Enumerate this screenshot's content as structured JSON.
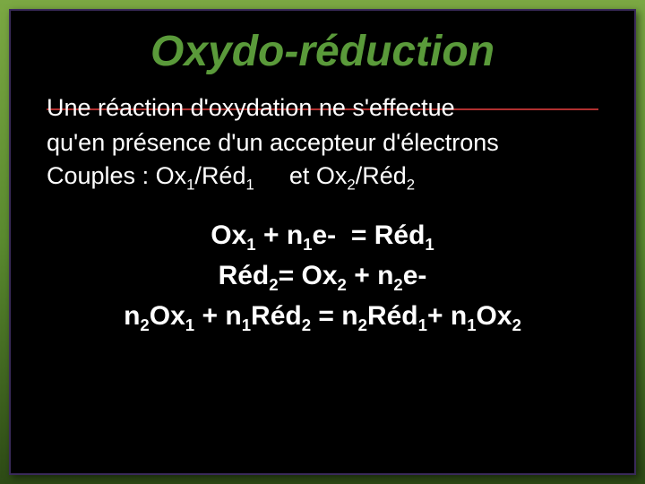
{
  "background": {
    "gradient_top": "#7ba843",
    "gradient_mid": "#5a8a2f",
    "gradient_bottom": "#2d4a15"
  },
  "frame": {
    "background_color": "#000000",
    "border_color": "#3a2a5a",
    "rule_color": "#b03030"
  },
  "typography": {
    "font_family": "Comic Sans MS",
    "title_fontsize": 48,
    "body_fontsize": 27,
    "equation_fontsize": 30,
    "title_color": "#5a9a3a",
    "text_color": "#ffffff"
  },
  "title": "Oxydo-réduction",
  "paragraph_line1": "Une réaction d'oxydation ne s'effectue",
  "paragraph_line2": "qu'en présence d'un accepteur d'électrons",
  "couples_label": "Couples :",
  "couples_pair1_ox": "Ox",
  "couples_pair1_red": "Réd",
  "couples_and": "et",
  "couples_pair2_ox": "Ox",
  "couples_pair2_red": "Réd",
  "sub1": "1",
  "sub2": "2",
  "eq1": {
    "lhs_ox": "Ox",
    "lhs_n": "n",
    "lhs_e": "e-",
    "eq": "=",
    "rhs_red": "Réd"
  },
  "eq2": {
    "lhs_red": "Réd",
    "eq": "=",
    "rhs_ox": "Ox",
    "rhs_n": "n",
    "rhs_e": "e-"
  },
  "eq3": {
    "t_n2": "n",
    "t_ox1": "Ox",
    "t_plus": "+",
    "t_n1": "n",
    "t_red2": "Réd",
    "eq": "=",
    "t_red1": "Réd",
    "t_ox2": "Ox"
  }
}
